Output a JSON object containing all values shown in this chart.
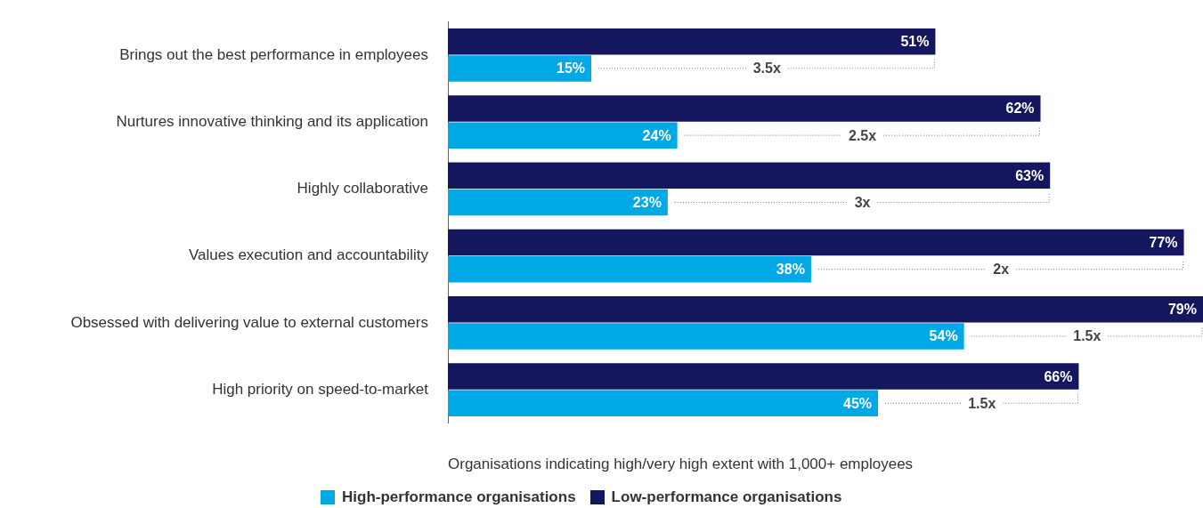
{
  "chart_data": {
    "type": "bar",
    "orientation": "horizontal",
    "xlabel": "Organisations indicating high/very high extent with 1,000+ employees",
    "categories": [
      "Brings out the best performance in employees",
      "Nurtures innovative thinking and its application",
      "Highly collaborative",
      "Values execution and accountability",
      "Obsessed with delivering value to external customers",
      "High priority on speed-to-market"
    ],
    "series": [
      {
        "name": "High-performance organisations",
        "color": "#00a9e6",
        "values": [
          15,
          24,
          23,
          38,
          54,
          45
        ],
        "value_labels": [
          "15%",
          "24%",
          "23%",
          "38%",
          "54%",
          "45%"
        ]
      },
      {
        "name": "Low-performance organisations",
        "color": "#14175e",
        "values": [
          51,
          62,
          63,
          77,
          79,
          66
        ],
        "value_labels": [
          "51%",
          "62%",
          "63%",
          "77%",
          "79%",
          "66%"
        ]
      }
    ],
    "legend": "bottom",
    "annotations": [
      {
        "text": "3.5x",
        "y": "Brings out the best performance in employees"
      },
      {
        "text": "2.5x",
        "y": "Nurtures innovative thinking and its application"
      },
      {
        "text": "3x",
        "y": "Highly collaborative"
      },
      {
        "text": "2x",
        "y": "Values execution and accountability"
      },
      {
        "text": "1.5x",
        "y": "Obsessed with delivering value to external customers"
      },
      {
        "text": "1.5x",
        "y": "High priority on speed-to-market"
      }
    ]
  }
}
